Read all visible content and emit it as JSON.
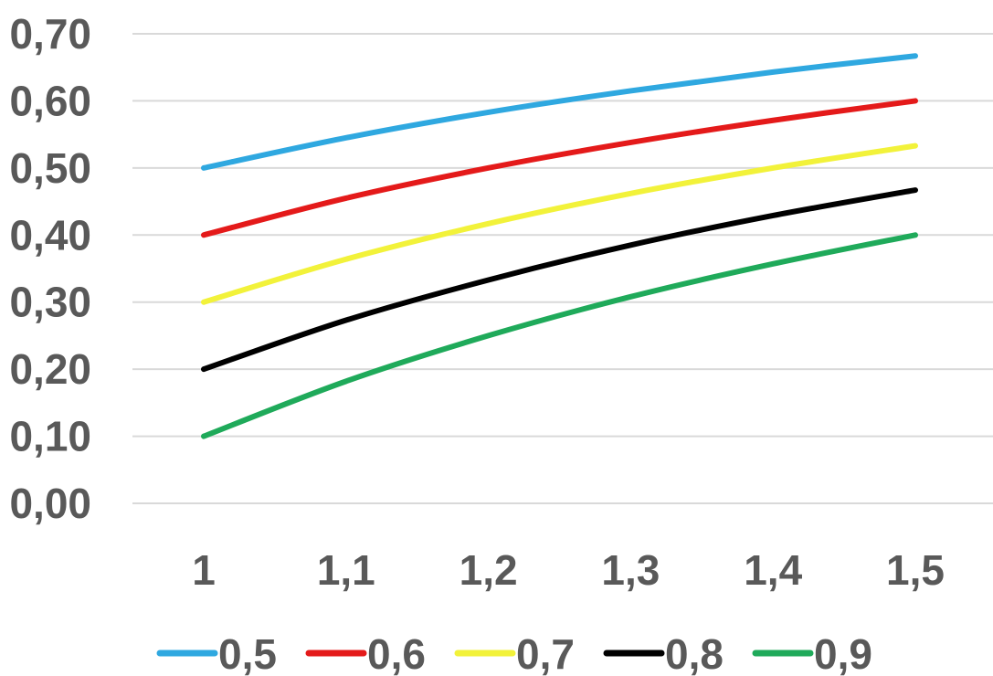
{
  "chart_data": {
    "type": "line",
    "title": "",
    "xlabel": "",
    "ylabel": "",
    "x": [
      "1",
      "1,1",
      "1,2",
      "1,3",
      "1,4",
      "1,5"
    ],
    "x_values": [
      1,
      1.1,
      1.2,
      1.3,
      1.4,
      1.5
    ],
    "y_ticks": [
      "0,00",
      "0,10",
      "0,20",
      "0,30",
      "0,40",
      "0,50",
      "0,60",
      "0,70"
    ],
    "ylim": [
      0,
      0.7
    ],
    "grid": true,
    "legend_position": "bottom",
    "series": [
      {
        "name": "0,5",
        "color": "#2fa8e0",
        "values": [
          0.5,
          0.545,
          0.583,
          0.615,
          0.643,
          0.667
        ]
      },
      {
        "name": "0,6",
        "color": "#e41a1a",
        "values": [
          0.4,
          0.455,
          0.5,
          0.538,
          0.571,
          0.6
        ]
      },
      {
        "name": "0,7",
        "color": "#f2f23a",
        "values": [
          0.3,
          0.364,
          0.417,
          0.462,
          0.5,
          0.533
        ]
      },
      {
        "name": "0,8",
        "color": "#000000",
        "values": [
          0.2,
          0.273,
          0.333,
          0.385,
          0.429,
          0.467
        ]
      },
      {
        "name": "0,9",
        "color": "#1faa5a",
        "values": [
          0.1,
          0.182,
          0.25,
          0.308,
          0.357,
          0.4
        ]
      }
    ]
  }
}
